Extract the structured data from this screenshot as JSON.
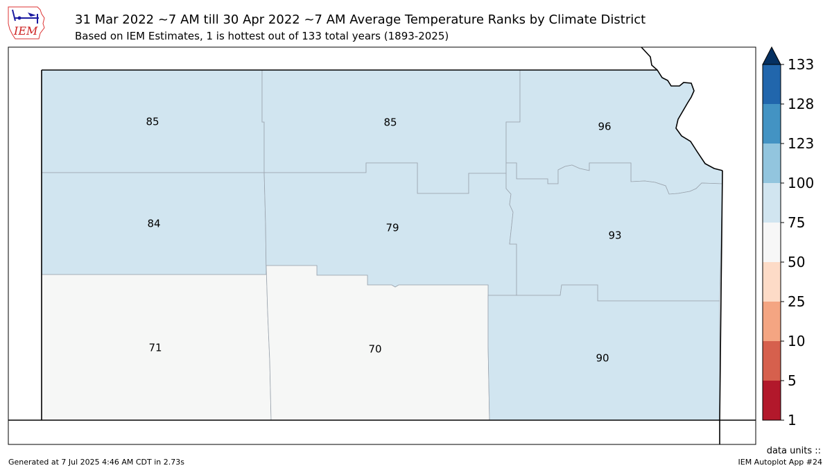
{
  "header": {
    "title": "31 Mar 2022 ~7 AM till 30 Apr 2022 ~7 AM Average Temperature Ranks by Climate District",
    "subtitle": "Based on IEM Estimates, 1 is hottest out of 133 total years (1893-2025)",
    "logo_text": "IEM"
  },
  "districts": [
    {
      "id": "northwest",
      "rank": "85"
    },
    {
      "id": "north-central",
      "rank": "85"
    },
    {
      "id": "northeast",
      "rank": "96"
    },
    {
      "id": "west-central",
      "rank": "84"
    },
    {
      "id": "central",
      "rank": "79"
    },
    {
      "id": "east-central",
      "rank": "93"
    },
    {
      "id": "southwest",
      "rank": "71"
    },
    {
      "id": "south-central",
      "rank": "70"
    },
    {
      "id": "southeast",
      "rank": "90"
    }
  ],
  "colorbar": {
    "labels": [
      "1",
      "5",
      "10",
      "25",
      "50",
      "75",
      "100",
      "123",
      "128",
      "133"
    ],
    "colors": [
      "#b2182b",
      "#d6604d",
      "#f4a582",
      "#fddbc7",
      "#f7f7f7",
      "#d1e5f0",
      "#92c5de",
      "#4393c3",
      "#2166ac",
      "#053061"
    ],
    "units_label": "data units ::"
  },
  "fill_colors": {
    "rank_75_100": "#d1e5f0",
    "rank_50_75": "#f6f7f6"
  },
  "footer": {
    "generated": "Generated at 7 Jul 2025 4:46 AM CDT in 2.73s",
    "app": "IEM Autoplot App #24"
  }
}
